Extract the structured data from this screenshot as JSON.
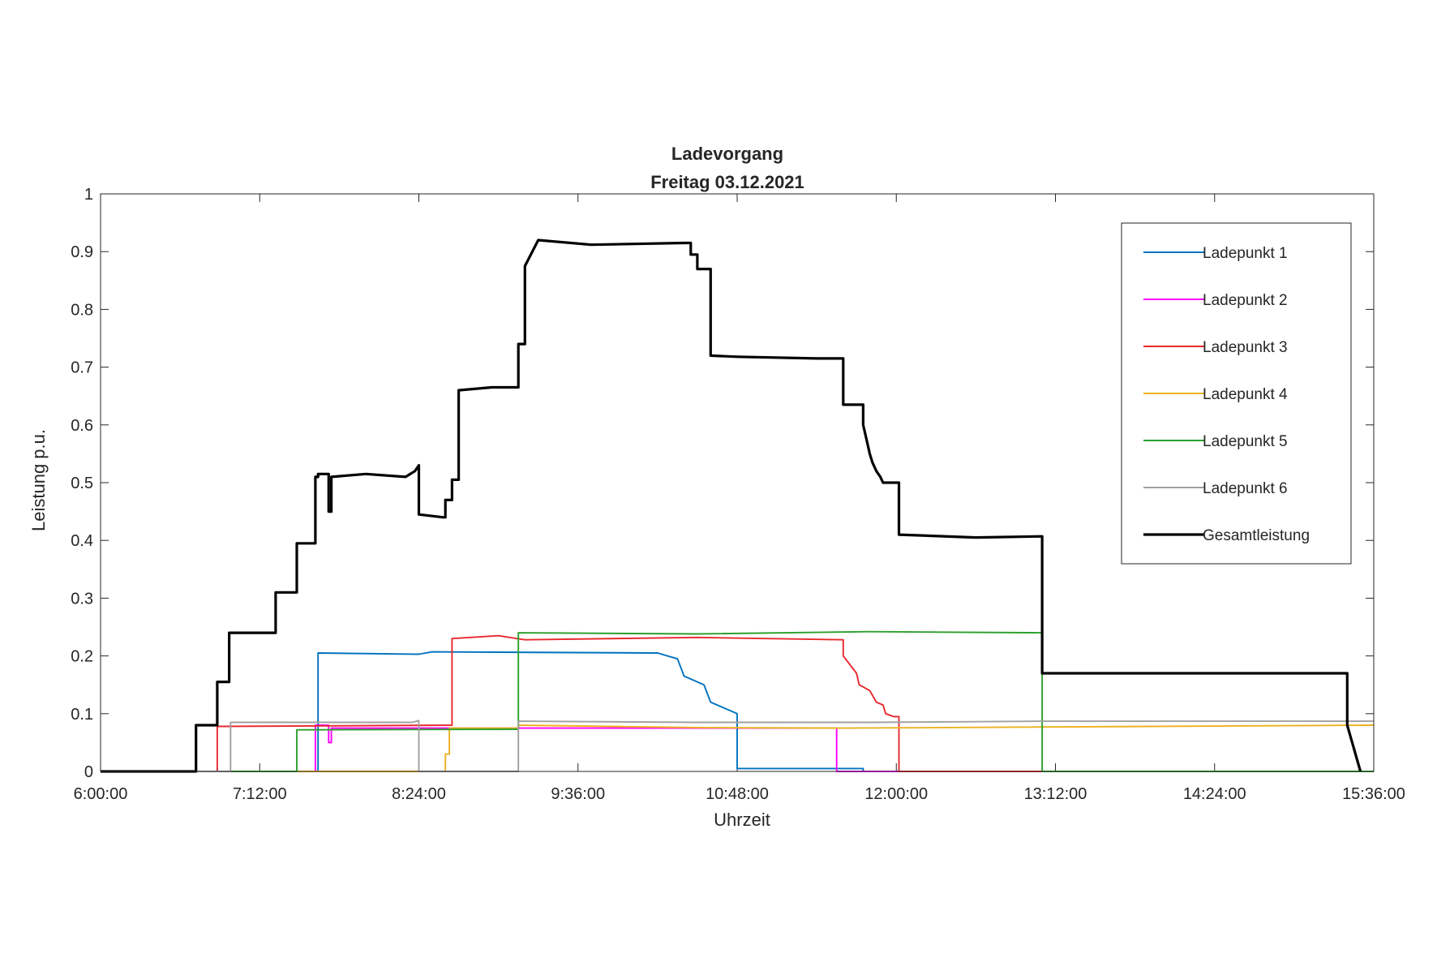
{
  "chart_data": {
    "type": "line",
    "title": [
      "Ladevorgang",
      "Freitag 03.12.2021"
    ],
    "xlabel": "Uhrzeit",
    "ylabel": "Leistung p.u.",
    "x_unit": "hours",
    "xlim": [
      6.0,
      15.6
    ],
    "ylim": [
      0,
      1
    ],
    "xticks": [
      {
        "value": 6.0,
        "label": "6:00:00"
      },
      {
        "value": 7.2,
        "label": "7:12:00"
      },
      {
        "value": 8.4,
        "label": "8:24:00"
      },
      {
        "value": 9.6,
        "label": "9:36:00"
      },
      {
        "value": 10.8,
        "label": "10:48:00"
      },
      {
        "value": 12.0,
        "label": "12:00:00"
      },
      {
        "value": 13.2,
        "label": "13:12:00"
      },
      {
        "value": 14.4,
        "label": "14:24:00"
      },
      {
        "value": 15.6,
        "label": "15:36:00"
      }
    ],
    "yticks": [
      {
        "value": 0,
        "label": "0"
      },
      {
        "value": 0.1,
        "label": "0.1"
      },
      {
        "value": 0.2,
        "label": "0.2"
      },
      {
        "value": 0.3,
        "label": "0.3"
      },
      {
        "value": 0.4,
        "label": "0.4"
      },
      {
        "value": 0.5,
        "label": "0.5"
      },
      {
        "value": 0.6,
        "label": "0.6"
      },
      {
        "value": 0.7,
        "label": "0.7"
      },
      {
        "value": 0.8,
        "label": "0.8"
      },
      {
        "value": 0.9,
        "label": "0.9"
      },
      {
        "value": 1,
        "label": "1"
      }
    ],
    "grid": false,
    "legend_position": "top-right",
    "series": [
      {
        "name": "Ladepunkt 1",
        "color": "#0072BD",
        "x": [
          6.0,
          7.64,
          7.64,
          8.4,
          8.5,
          10.2,
          10.35,
          10.4,
          10.55,
          10.6,
          10.8,
          10.8,
          11.75,
          11.75,
          15.6
        ],
        "y": [
          0,
          0,
          0.205,
          0.203,
          0.207,
          0.205,
          0.195,
          0.165,
          0.15,
          0.12,
          0.1,
          0.005,
          0.005,
          0,
          0
        ]
      },
      {
        "name": "Ladepunkt 2",
        "color": "#FF00FF",
        "x": [
          6.0,
          7.62,
          7.62,
          7.72,
          7.72,
          7.74,
          7.74,
          11.55,
          11.55,
          15.6
        ],
        "y": [
          0,
          0,
          0.08,
          0.08,
          0.05,
          0.05,
          0.075,
          0.075,
          0,
          0
        ]
      },
      {
        "name": "Ladepunkt 3",
        "color": "#E8282E",
        "x": [
          6.0,
          6.88,
          6.88,
          8.65,
          8.65,
          9.0,
          9.2,
          10.5,
          11.6,
          11.6,
          11.7,
          11.72,
          11.8,
          11.85,
          11.9,
          11.92,
          11.98,
          12.02,
          12.02,
          15.6
        ],
        "y": [
          0,
          0,
          0.078,
          0.08,
          0.23,
          0.235,
          0.228,
          0.232,
          0.228,
          0.2,
          0.17,
          0.15,
          0.14,
          0.12,
          0.115,
          0.1,
          0.095,
          0.095,
          0,
          0
        ]
      },
      {
        "name": "Ladepunkt 4",
        "color": "#EDB120",
        "x": [
          6.0,
          8.6,
          8.6,
          8.63,
          8.63,
          9.15,
          9.15,
          10.5,
          11.6,
          15.6
        ],
        "y": [
          0,
          0,
          0.03,
          0.03,
          0.075,
          0.075,
          0.08,
          0.076,
          0.075,
          0.08
        ]
      },
      {
        "name": "Ladepunkt 5",
        "color": "#2CA02C",
        "x": [
          6.0,
          7.48,
          7.48,
          9.15,
          9.15,
          10.5,
          11.8,
          13.1,
          13.1,
          15.6
        ],
        "y": [
          0,
          0,
          0.072,
          0.073,
          0.24,
          0.238,
          0.242,
          0.24,
          0,
          0
        ]
      },
      {
        "name": "Ladepunkt 6",
        "color": "#A0A0A0",
        "x": [
          6.0,
          6.98,
          6.98,
          8.35,
          8.4,
          8.4,
          9.15,
          9.15,
          10.5,
          11.8,
          13.1,
          15.6
        ],
        "y": [
          0,
          0,
          0.085,
          0.085,
          0.088,
          0,
          0,
          0.087,
          0.085,
          0.085,
          0.087,
          0.087
        ]
      },
      {
        "name": "Gesamtleistung",
        "color": "#000000",
        "x": [
          6.0,
          6.72,
          6.72,
          6.88,
          6.88,
          6.97,
          6.97,
          7.05,
          7.05,
          7.32,
          7.32,
          7.48,
          7.48,
          7.62,
          7.62,
          7.64,
          7.64,
          7.72,
          7.72,
          7.74,
          7.74,
          8.0,
          8.3,
          8.37,
          8.4,
          8.4,
          8.58,
          8.6,
          8.6,
          8.65,
          8.65,
          8.7,
          8.7,
          8.95,
          9.15,
          9.15,
          9.2,
          9.2,
          9.3,
          9.7,
          10.4,
          10.45,
          10.45,
          10.5,
          10.5,
          10.6,
          10.6,
          10.8,
          11.4,
          11.6,
          11.6,
          11.75,
          11.75,
          11.78,
          11.8,
          11.82,
          11.85,
          11.88,
          11.9,
          11.95,
          12.02,
          12.02,
          12.6,
          13.1,
          13.1,
          15.4,
          15.4,
          15.5
        ],
        "y": [
          0,
          0,
          0.08,
          0.08,
          0.155,
          0.155,
          0.24,
          0.24,
          0.24,
          0.24,
          0.31,
          0.31,
          0.395,
          0.395,
          0.51,
          0.51,
          0.515,
          0.515,
          0.45,
          0.45,
          0.51,
          0.515,
          0.51,
          0.52,
          0.53,
          0.445,
          0.44,
          0.44,
          0.47,
          0.47,
          0.505,
          0.505,
          0.66,
          0.665,
          0.665,
          0.74,
          0.74,
          0.875,
          0.92,
          0.912,
          0.915,
          0.915,
          0.895,
          0.895,
          0.87,
          0.87,
          0.72,
          0.718,
          0.715,
          0.715,
          0.635,
          0.635,
          0.6,
          0.57,
          0.55,
          0.535,
          0.52,
          0.51,
          0.5,
          0.5,
          0.5,
          0.41,
          0.405,
          0.407,
          0.17,
          0.17,
          0.08,
          0
        ]
      }
    ]
  }
}
